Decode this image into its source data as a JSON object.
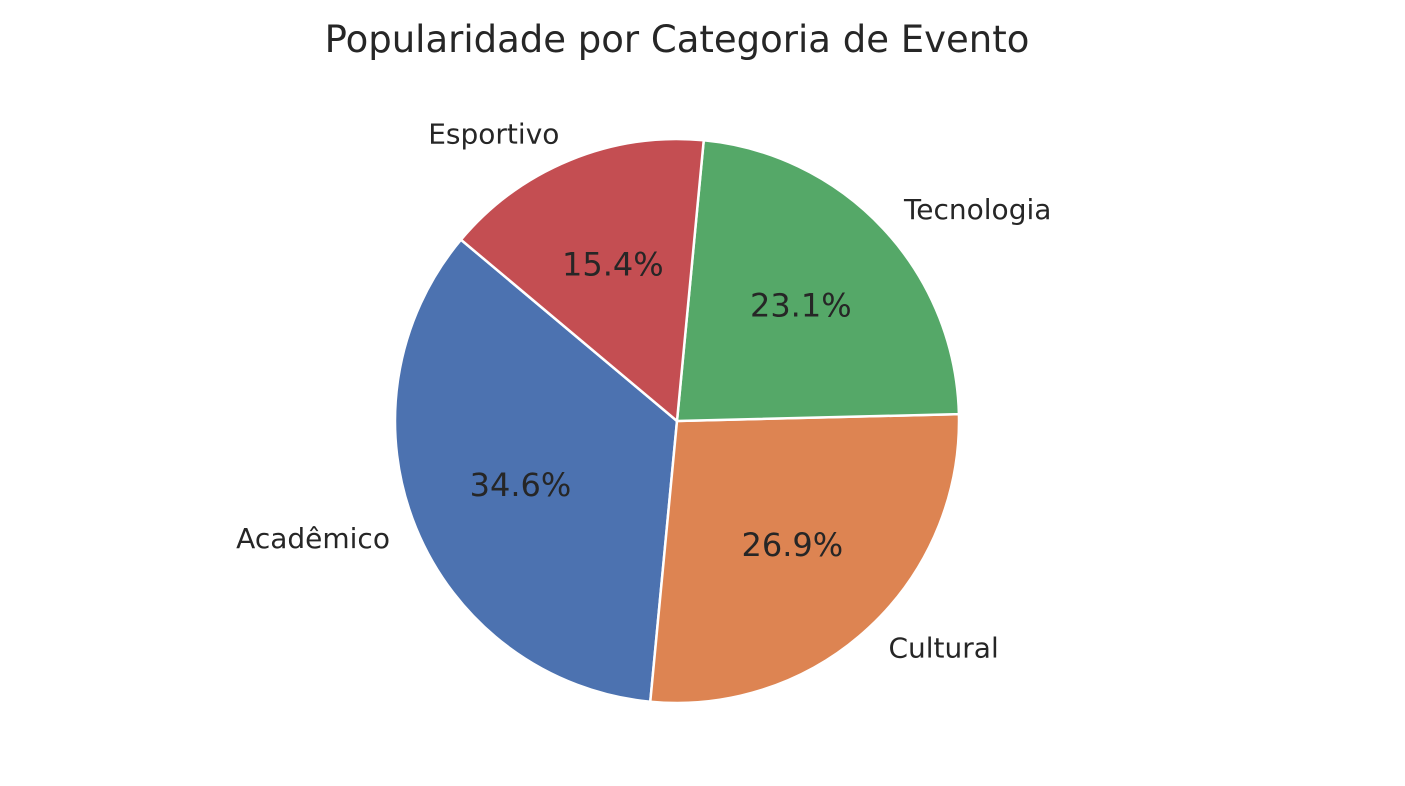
{
  "chart_data": {
    "type": "pie",
    "title": "Popularidade por Categoria de Evento",
    "slices": [
      {
        "label": "Acadêmico",
        "value": 34.6,
        "pct_label": "34.6%",
        "color": "#4c72b0"
      },
      {
        "label": "Cultural",
        "value": 26.9,
        "pct_label": "26.9%",
        "color": "#dd8452"
      },
      {
        "label": "Tecnologia",
        "value": 23.1,
        "pct_label": "23.1%",
        "color": "#55a868"
      },
      {
        "label": "Esportivo",
        "value": 15.4,
        "pct_label": "15.4%",
        "color": "#c44e52"
      }
    ],
    "start_angle_deg": 140,
    "direction": "counterclockwise",
    "edge_color": "#ffffff",
    "legend": "none"
  }
}
